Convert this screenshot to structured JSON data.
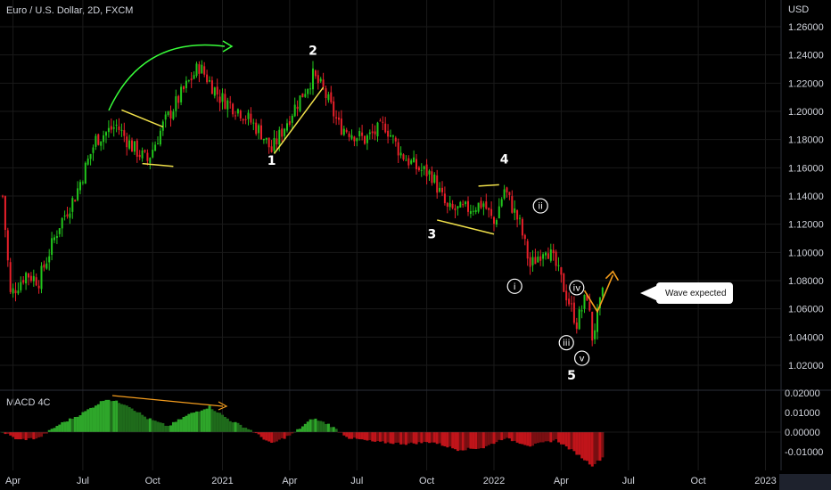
{
  "title": "Euro / U.S. Dollar, 2D, FXCM",
  "currency_label": "USD",
  "indicator_label": "MACD 4C",
  "callout": "Wave expected",
  "colors": {
    "up": "#22c51c",
    "down": "#e8202a",
    "grid": "#1a1a1a",
    "trendline": "#f0e04a",
    "accent_arrow": "#39ff3a",
    "forecast": "#f39c1d",
    "macd_pos_strong": "#2ea62a",
    "macd_pos_weak": "#1f6b1b",
    "macd_neg_strong": "#c0141a",
    "macd_neg_weak": "#7a0f12"
  },
  "chart_data": {
    "type": "candlestick",
    "symbol": "Euro / U.S. Dollar",
    "interval": "2D",
    "x_ticks": [
      "Apr",
      "Jul",
      "Oct",
      "2021",
      "Apr",
      "Jul",
      "Oct",
      "2022",
      "Apr",
      "Jul",
      "Oct",
      "2023"
    ],
    "price_axis": {
      "ticks": [
        "1.26000",
        "1.24000",
        "1.22000",
        "1.20000",
        "1.18000",
        "1.16000",
        "1.14000",
        "1.12000",
        "1.10000",
        "1.08000",
        "1.06000",
        "1.04000",
        "1.02000"
      ],
      "ylim": [
        1.0,
        1.27
      ]
    },
    "macd_axis": {
      "ticks": [
        "0.02000",
        "0.01000",
        "0.00000",
        "-0.01000"
      ],
      "ylim": [
        -0.018,
        0.021
      ]
    },
    "price_anchors": [
      {
        "t": 0,
        "v": 1.14
      },
      {
        "t": 3,
        "v": 1.07
      },
      {
        "t": 9,
        "v": 1.085
      },
      {
        "t": 14,
        "v": 1.08
      },
      {
        "t": 22,
        "v": 1.12
      },
      {
        "t": 28,
        "v": 1.14
      },
      {
        "t": 36,
        "v": 1.18
      },
      {
        "t": 44,
        "v": 1.19
      },
      {
        "t": 50,
        "v": 1.175
      },
      {
        "t": 56,
        "v": 1.165
      },
      {
        "t": 62,
        "v": 1.19
      },
      {
        "t": 70,
        "v": 1.215
      },
      {
        "t": 76,
        "v": 1.232
      },
      {
        "t": 84,
        "v": 1.21
      },
      {
        "t": 92,
        "v": 1.2
      },
      {
        "t": 100,
        "v": 1.185
      },
      {
        "t": 104,
        "v": 1.172
      },
      {
        "t": 112,
        "v": 1.2
      },
      {
        "t": 120,
        "v": 1.225
      },
      {
        "t": 124,
        "v": 1.215
      },
      {
        "t": 130,
        "v": 1.19
      },
      {
        "t": 140,
        "v": 1.18
      },
      {
        "t": 148,
        "v": 1.19
      },
      {
        "t": 154,
        "v": 1.17
      },
      {
        "t": 160,
        "v": 1.16
      },
      {
        "t": 166,
        "v": 1.155
      },
      {
        "t": 172,
        "v": 1.13
      },
      {
        "t": 178,
        "v": 1.13
      },
      {
        "t": 186,
        "v": 1.135
      },
      {
        "t": 190,
        "v": 1.12
      },
      {
        "t": 194,
        "v": 1.145
      },
      {
        "t": 200,
        "v": 1.12
      },
      {
        "t": 204,
        "v": 1.09
      },
      {
        "t": 210,
        "v": 1.105
      },
      {
        "t": 214,
        "v": 1.09
      },
      {
        "t": 218,
        "v": 1.07
      },
      {
        "t": 222,
        "v": 1.05
      },
      {
        "t": 226,
        "v": 1.07
      },
      {
        "t": 228,
        "v": 1.04
      },
      {
        "t": 232,
        "v": 1.07
      }
    ],
    "macd_anchors": [
      {
        "t": 0,
        "v": 0.0
      },
      {
        "t": 6,
        "v": -0.004
      },
      {
        "t": 14,
        "v": -0.003
      },
      {
        "t": 22,
        "v": 0.004
      },
      {
        "t": 30,
        "v": 0.009
      },
      {
        "t": 40,
        "v": 0.017
      },
      {
        "t": 48,
        "v": 0.014
      },
      {
        "t": 56,
        "v": 0.007
      },
      {
        "t": 64,
        "v": 0.003
      },
      {
        "t": 72,
        "v": 0.009
      },
      {
        "t": 80,
        "v": 0.013
      },
      {
        "t": 88,
        "v": 0.006
      },
      {
        "t": 96,
        "v": 0.001
      },
      {
        "t": 104,
        "v": -0.006
      },
      {
        "t": 112,
        "v": -0.001
      },
      {
        "t": 120,
        "v": 0.007
      },
      {
        "t": 126,
        "v": 0.004
      },
      {
        "t": 134,
        "v": -0.003
      },
      {
        "t": 144,
        "v": -0.005
      },
      {
        "t": 156,
        "v": -0.006
      },
      {
        "t": 166,
        "v": -0.005
      },
      {
        "t": 176,
        "v": -0.009
      },
      {
        "t": 186,
        "v": -0.008
      },
      {
        "t": 194,
        "v": -0.003
      },
      {
        "t": 204,
        "v": -0.007
      },
      {
        "t": 214,
        "v": -0.004
      },
      {
        "t": 222,
        "v": -0.011
      },
      {
        "t": 228,
        "v": -0.017
      },
      {
        "t": 232,
        "v": -0.013
      }
    ],
    "bar_count": 233,
    "wave_labels": [
      {
        "text": "1",
        "t": 104,
        "v": 1.162,
        "style": "plain"
      },
      {
        "text": "2",
        "t": 120,
        "v": 1.24,
        "style": "plain"
      },
      {
        "text": "3",
        "t": 166,
        "v": 1.11,
        "style": "plain"
      },
      {
        "text": "4",
        "t": 194,
        "v": 1.163,
        "style": "plain"
      },
      {
        "text": "5",
        "t": 220,
        "v": 1.01,
        "style": "plain"
      },
      {
        "text": "i",
        "t": 198,
        "v": 1.076,
        "style": "circled"
      },
      {
        "text": "ii",
        "t": 208,
        "v": 1.133,
        "style": "circled"
      },
      {
        "text": "iii",
        "t": 218,
        "v": 1.036,
        "style": "circled"
      },
      {
        "text": "iv",
        "t": 222,
        "v": 1.075,
        "style": "circled"
      },
      {
        "text": "v",
        "t": 224,
        "v": 1.025,
        "style": "circled"
      }
    ],
    "trendlines": [
      {
        "from": {
          "t": 46,
          "v": 1.201
        },
        "to": {
          "t": 62,
          "v": 1.189
        }
      },
      {
        "from": {
          "t": 54,
          "v": 1.163
        },
        "to": {
          "t": 66,
          "v": 1.161
        }
      },
      {
        "from": {
          "t": 105,
          "v": 1.17
        },
        "to": {
          "t": 124,
          "v": 1.217
        }
      },
      {
        "from": {
          "t": 168,
          "v": 1.123
        },
        "to": {
          "t": 190,
          "v": 1.113
        }
      },
      {
        "from": {
          "t": 184,
          "v": 1.147
        },
        "to": {
          "t": 192,
          "v": 1.148
        }
      }
    ],
    "forecast_path": [
      {
        "t": 225,
        "v": 1.073
      },
      {
        "t": 230,
        "v": 1.058
      },
      {
        "t": 236,
        "v": 1.084
      }
    ]
  }
}
